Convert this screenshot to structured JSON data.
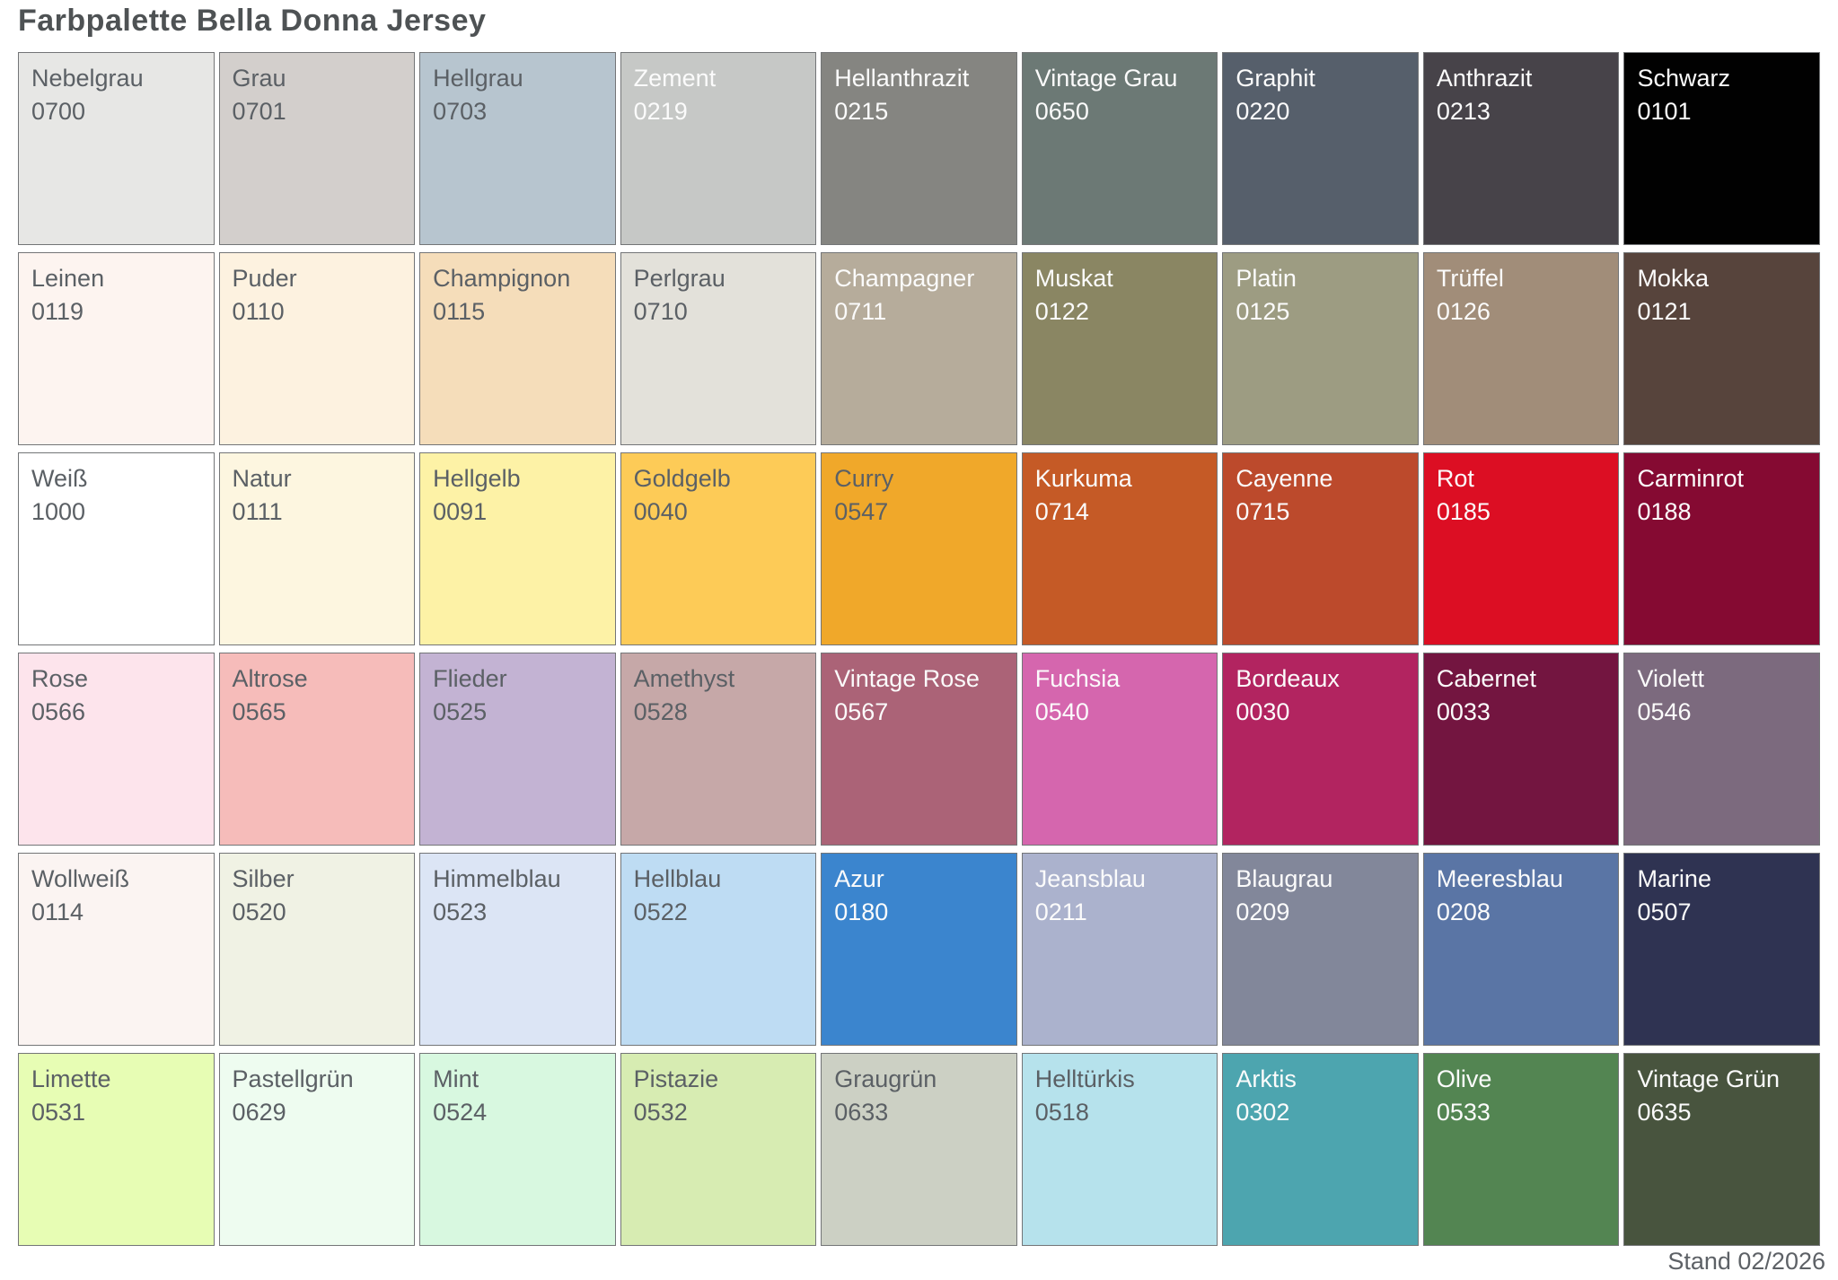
{
  "title": "Farbpalette Bella Donna Jersey",
  "footer": "Stand 02/2026",
  "text_colors": {
    "dark": "#5b6065",
    "light": "#fbfbfb"
  },
  "palette": {
    "rows": 6,
    "cols": 9,
    "swatches": [
      {
        "name": "Nebelgrau",
        "code": "0700",
        "color": "#e7e7e5",
        "text": "dark"
      },
      {
        "name": "Grau",
        "code": "0701",
        "color": "#d3cfcc",
        "text": "dark"
      },
      {
        "name": "Hellgrau",
        "code": "0703",
        "color": "#b7c5cf",
        "text": "dark"
      },
      {
        "name": "Zement",
        "code": "0219",
        "color": "#c6c8c6",
        "text": "light"
      },
      {
        "name": "Hellanthrazit",
        "code": "0215",
        "color": "#858581",
        "text": "light"
      },
      {
        "name": "Vintage Grau",
        "code": "0650",
        "color": "#6c7975",
        "text": "light"
      },
      {
        "name": "Graphit",
        "code": "0220",
        "color": "#565f6b",
        "text": "light"
      },
      {
        "name": "Anthrazit",
        "code": "0213",
        "color": "#474349",
        "text": "light"
      },
      {
        "name": "Schwarz",
        "code": "0101",
        "color": "#010101",
        "text": "light"
      },
      {
        "name": "Leinen",
        "code": "0119",
        "color": "#fdf4f0",
        "text": "dark"
      },
      {
        "name": "Puder",
        "code": "0110",
        "color": "#fdf2e0",
        "text": "dark"
      },
      {
        "name": "Champignon",
        "code": "0115",
        "color": "#f5ddba",
        "text": "dark"
      },
      {
        "name": "Perlgrau",
        "code": "0710",
        "color": "#e3e1da",
        "text": "dark"
      },
      {
        "name": "Champagner",
        "code": "0711",
        "color": "#b6ac9b",
        "text": "light"
      },
      {
        "name": "Muskat",
        "code": "0122",
        "color": "#8a8663",
        "text": "light"
      },
      {
        "name": "Platin",
        "code": "0125",
        "color": "#9d9c82",
        "text": "light"
      },
      {
        "name": "Trüffel",
        "code": "0126",
        "color": "#a18d79",
        "text": "light"
      },
      {
        "name": "Mokka",
        "code": "0121",
        "color": "#57443c",
        "text": "light"
      },
      {
        "name": "Weiß",
        "code": "1000",
        "color": "#ffffff",
        "text": "dark"
      },
      {
        "name": "Natur",
        "code": "0111",
        "color": "#fdf6e0",
        "text": "dark"
      },
      {
        "name": "Hellgelb",
        "code": "0091",
        "color": "#fdf2a6",
        "text": "dark"
      },
      {
        "name": "Goldgelb",
        "code": "0040",
        "color": "#fdcb57",
        "text": "dark"
      },
      {
        "name": "Curry",
        "code": "0547",
        "color": "#f0a82a",
        "text": "dark"
      },
      {
        "name": "Kurkuma",
        "code": "0714",
        "color": "#c55a26",
        "text": "light"
      },
      {
        "name": "Cayenne",
        "code": "0715",
        "color": "#bc4a2c",
        "text": "light"
      },
      {
        "name": "Rot",
        "code": "0185",
        "color": "#dc0e23",
        "text": "light"
      },
      {
        "name": "Carminrot",
        "code": "0188",
        "color": "#850a32",
        "text": "light"
      },
      {
        "name": "Rose",
        "code": "0566",
        "color": "#fde4ec",
        "text": "dark"
      },
      {
        "name": "Altrose",
        "code": "0565",
        "color": "#f6bcba",
        "text": "dark"
      },
      {
        "name": "Flieder",
        "code": "0525",
        "color": "#c3b3d3",
        "text": "dark"
      },
      {
        "name": "Amethyst",
        "code": "0528",
        "color": "#c6a8a8",
        "text": "dark"
      },
      {
        "name": "Vintage Rose",
        "code": "0567",
        "color": "#ab6377",
        "text": "light"
      },
      {
        "name": "Fuchsia",
        "code": "0540",
        "color": "#d566ae",
        "text": "light"
      },
      {
        "name": "Bordeaux",
        "code": "0030",
        "color": "#b22460",
        "text": "light"
      },
      {
        "name": "Cabernet",
        "code": "0033",
        "color": "#731540",
        "text": "light"
      },
      {
        "name": "Violett",
        "code": "0546",
        "color": "#7c6a7e",
        "text": "light"
      },
      {
        "name": "Wollweiß",
        "code": "0114",
        "color": "#fbf4f2",
        "text": "dark"
      },
      {
        "name": "Silber",
        "code": "0520",
        "color": "#f0f2e4",
        "text": "dark"
      },
      {
        "name": "Himmelblau",
        "code": "0523",
        "color": "#dce5f5",
        "text": "dark"
      },
      {
        "name": "Hellblau",
        "code": "0522",
        "color": "#bedcf3",
        "text": "dark"
      },
      {
        "name": "Azur",
        "code": "0180",
        "color": "#3b85ce",
        "text": "light"
      },
      {
        "name": "Jeansblau",
        "code": "0211",
        "color": "#abb2cd",
        "text": "light"
      },
      {
        "name": "Blaugrau",
        "code": "0209",
        "color": "#82879a",
        "text": "light"
      },
      {
        "name": "Meeresblau",
        "code": "0208",
        "color": "#5a75a5",
        "text": "light"
      },
      {
        "name": "Marine",
        "code": "0507",
        "color": "#2f3352",
        "text": "light"
      },
      {
        "name": "Limette",
        "code": "0531",
        "color": "#e7fdb4",
        "text": "dark"
      },
      {
        "name": "Pastellgrün",
        "code": "0629",
        "color": "#eefcf0",
        "text": "dark"
      },
      {
        "name": "Mint",
        "code": "0524",
        "color": "#d8f8e0",
        "text": "dark"
      },
      {
        "name": "Pistazie",
        "code": "0532",
        "color": "#d7ecb2",
        "text": "dark"
      },
      {
        "name": "Graugrün",
        "code": "0633",
        "color": "#ccd0c4",
        "text": "dark"
      },
      {
        "name": "Helltürkis",
        "code": "0518",
        "color": "#b6e2ec",
        "text": "dark"
      },
      {
        "name": "Arktis",
        "code": "0302",
        "color": "#4da5af",
        "text": "light"
      },
      {
        "name": "Olive",
        "code": "0533",
        "color": "#538552",
        "text": "light"
      },
      {
        "name": "Vintage Grün",
        "code": "0635",
        "color": "#48543e",
        "text": "light"
      }
    ]
  }
}
